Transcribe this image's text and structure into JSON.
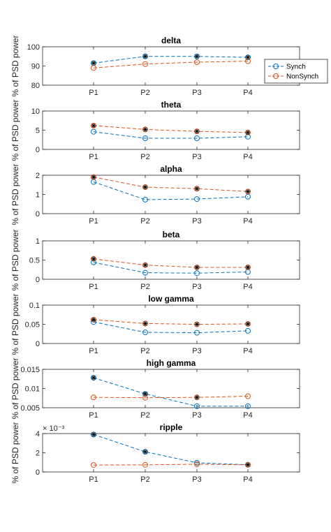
{
  "figure": {
    "legend": {
      "placement": "right of top panel",
      "entries": [
        "Synch",
        "NonSynch"
      ]
    }
  },
  "colors": {
    "synch": "#0072BD",
    "nonsynch": "#D95319",
    "star": "#000000",
    "axis": "#262626"
  },
  "chart_data": [
    {
      "type": "line",
      "title": "delta",
      "ylabel": "% of PSD power",
      "categories": [
        "P1",
        "P2",
        "P3",
        "P4"
      ],
      "ylim": [
        80,
        100
      ],
      "yticks": [
        80,
        90,
        100
      ],
      "ytick_labels": [
        "80",
        "90",
        "100"
      ],
      "series": [
        {
          "name": "Synch",
          "values": [
            91.5,
            95.0,
            95.0,
            94.5
          ],
          "significant": [
            true,
            true,
            true,
            true
          ]
        },
        {
          "name": "NonSynch",
          "values": [
            89.0,
            91.0,
            92.0,
            92.5
          ],
          "significant": [
            false,
            false,
            false,
            false
          ]
        }
      ]
    },
    {
      "type": "line",
      "title": "theta",
      "ylabel": "% of PSD power",
      "categories": [
        "P1",
        "P2",
        "P3",
        "P4"
      ],
      "ylim": [
        0,
        10
      ],
      "yticks": [
        0,
        5,
        10
      ],
      "ytick_labels": [
        "0",
        "5",
        "10"
      ],
      "series": [
        {
          "name": "Synch",
          "values": [
            4.6,
            2.9,
            2.9,
            3.3
          ],
          "significant": [
            false,
            false,
            false,
            false
          ]
        },
        {
          "name": "NonSynch",
          "values": [
            6.2,
            5.2,
            4.7,
            4.4
          ],
          "significant": [
            true,
            true,
            true,
            true
          ]
        }
      ]
    },
    {
      "type": "line",
      "title": "alpha",
      "ylabel": "% of PSD power",
      "categories": [
        "P1",
        "P2",
        "P3",
        "P4"
      ],
      "ylim": [
        0,
        2
      ],
      "yticks": [
        0,
        1,
        2
      ],
      "ytick_labels": [
        "0",
        "1",
        "2"
      ],
      "series": [
        {
          "name": "Synch",
          "values": [
            1.65,
            0.73,
            0.76,
            0.88
          ],
          "significant": [
            false,
            false,
            false,
            false
          ]
        },
        {
          "name": "NonSynch",
          "values": [
            1.9,
            1.38,
            1.3,
            1.15
          ],
          "significant": [
            true,
            true,
            true,
            true
          ]
        }
      ]
    },
    {
      "type": "line",
      "title": "beta",
      "ylabel": "% of PSD power",
      "categories": [
        "P1",
        "P2",
        "P3",
        "P4"
      ],
      "ylim": [
        0,
        1
      ],
      "yticks": [
        0,
        0.5,
        1
      ],
      "ytick_labels": [
        "0",
        "0.5",
        "1"
      ],
      "series": [
        {
          "name": "Synch",
          "values": [
            0.44,
            0.17,
            0.16,
            0.19
          ],
          "significant": [
            false,
            false,
            false,
            false
          ]
        },
        {
          "name": "NonSynch",
          "values": [
            0.53,
            0.37,
            0.31,
            0.31
          ],
          "significant": [
            true,
            true,
            true,
            true
          ]
        }
      ]
    },
    {
      "type": "line",
      "title": "low gamma",
      "ylabel": "% of PSD power",
      "categories": [
        "P1",
        "P2",
        "P3",
        "P4"
      ],
      "ylim": [
        0,
        0.1
      ],
      "yticks": [
        0,
        0.05,
        0.1
      ],
      "ytick_labels": [
        "0",
        "0.05",
        "0.1"
      ],
      "series": [
        {
          "name": "Synch",
          "values": [
            0.056,
            0.029,
            0.028,
            0.033
          ],
          "significant": [
            false,
            false,
            false,
            false
          ]
        },
        {
          "name": "NonSynch",
          "values": [
            0.062,
            0.052,
            0.05,
            0.051
          ],
          "significant": [
            true,
            true,
            true,
            true
          ]
        }
      ]
    },
    {
      "type": "line",
      "title": "high gamma",
      "ylabel": "% of PSD power",
      "categories": [
        "P1",
        "P2",
        "P3",
        "P4"
      ],
      "ylim": [
        0.005,
        0.015
      ],
      "yticks": [
        0.005,
        0.01,
        0.015
      ],
      "ytick_labels": [
        "0.005",
        "0.01",
        "0.015"
      ],
      "series": [
        {
          "name": "Synch",
          "values": [
            0.0128,
            0.0086,
            0.0054,
            0.0054
          ],
          "significant": [
            true,
            true,
            false,
            false
          ]
        },
        {
          "name": "NonSynch",
          "values": [
            0.0077,
            0.0076,
            0.0077,
            0.008
          ],
          "significant": [
            false,
            false,
            true,
            false
          ]
        }
      ]
    },
    {
      "type": "line",
      "title": "ripple",
      "ylabel": "% of PSD power",
      "exponent_label": "× 10⁻³",
      "categories": [
        "P1",
        "P2",
        "P3",
        "P4"
      ],
      "ylim": [
        0,
        4
      ],
      "yticks": [
        0,
        2,
        4
      ],
      "ytick_labels": [
        "0",
        "2",
        "4"
      ],
      "series": [
        {
          "name": "Synch",
          "values": [
            3.9,
            2.1,
            0.95,
            0.75
          ],
          "significant": [
            true,
            true,
            false,
            false
          ]
        },
        {
          "name": "NonSynch",
          "values": [
            0.72,
            0.74,
            0.8,
            0.75
          ],
          "significant": [
            false,
            false,
            false,
            true
          ]
        }
      ]
    }
  ]
}
